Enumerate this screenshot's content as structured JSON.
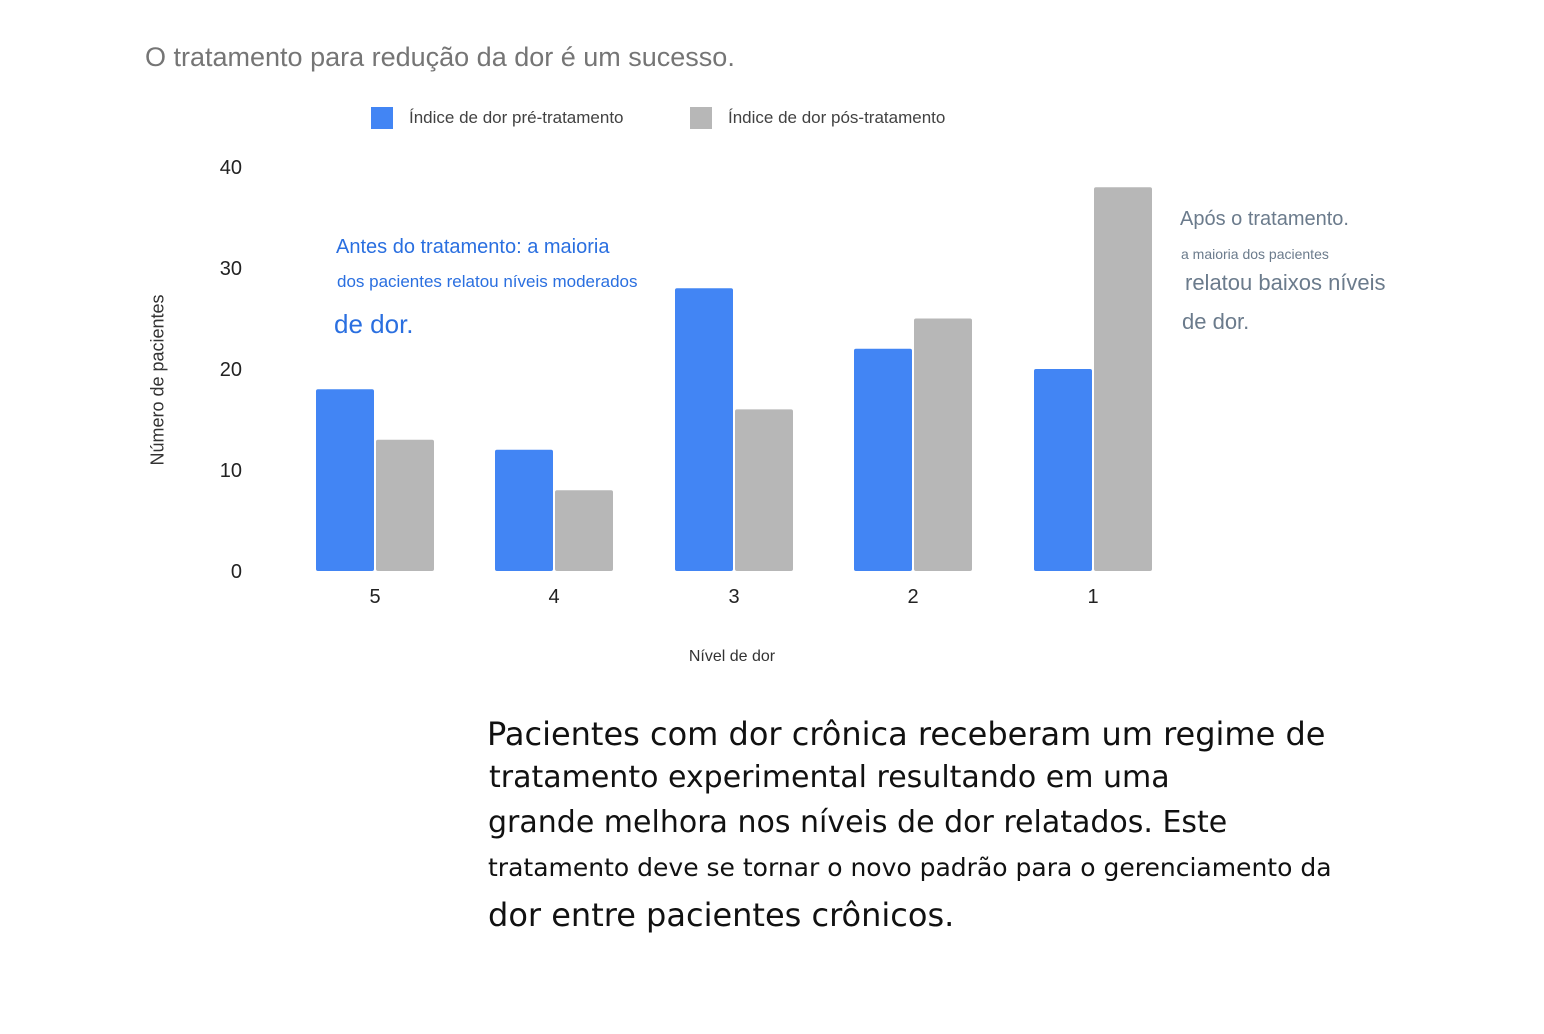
{
  "title": "O tratamento para redução da dor é um sucesso.",
  "legend": {
    "pre_label": "Índice de dor pré-tratamento",
    "post_label": "Índice de dor pós-tratamento"
  },
  "annotations": {
    "before": [
      "Antes do tratamento: a maioria",
      "dos pacientes relatou níveis moderados",
      "de dor."
    ],
    "after": [
      "Após o tratamento.",
      "a maioria dos pacientes",
      "relatou baixos níveis",
      "de dor."
    ]
  },
  "paragraph": [
    "Pacientes com dor crônica receberam um regime de",
    "tratamento experimental resultando em uma",
    "grande melhora nos níveis de dor relatados. Este",
    "tratamento deve se tornar o novo padrão para o gerenciamento da",
    "dor entre pacientes crônicos."
  ],
  "colors": {
    "pre": "#4285f4",
    "post": "#b7b7b7"
  },
  "chart_data": {
    "type": "bar",
    "title": "O tratamento para redução da dor é um sucesso.",
    "xlabel": "Nível de dor",
    "ylabel": "Número de pacientes",
    "categories": [
      "5",
      "4",
      "3",
      "2",
      "1"
    ],
    "series": [
      {
        "name": "Índice de dor pré-tratamento",
        "values": [
          18,
          12,
          28,
          22,
          20
        ]
      },
      {
        "name": "Índice de dor pós-tratamento",
        "values": [
          13,
          8,
          16,
          25,
          38
        ]
      }
    ],
    "ylim": [
      0,
      40
    ],
    "yticks": [
      0,
      10,
      20,
      30,
      40
    ],
    "grid": false,
    "legend_position": "top"
  }
}
